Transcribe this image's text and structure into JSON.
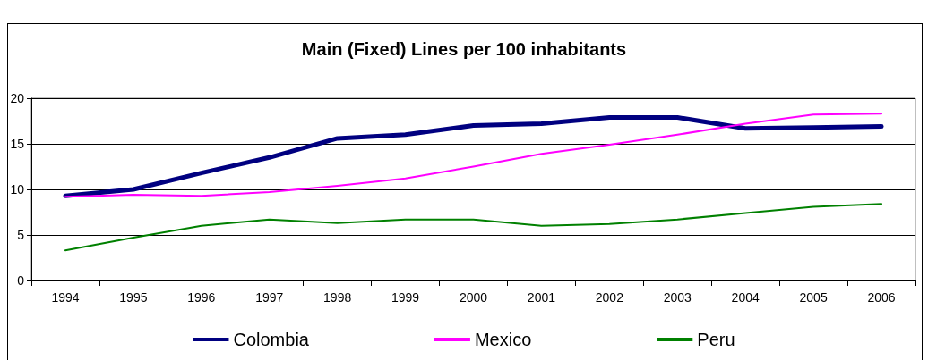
{
  "chart_data": {
    "type": "line",
    "title": "Main (Fixed) Lines per 100 inhabitants",
    "categories": [
      "1994",
      "1995",
      "1996",
      "1997",
      "1998",
      "1999",
      "2000",
      "2001",
      "2002",
      "2003",
      "2004",
      "2005",
      "2006"
    ],
    "series": [
      {
        "name": "Colombia",
        "color": "#000080",
        "values": [
          9.3,
          10.0,
          11.8,
          13.5,
          15.6,
          16.0,
          17.0,
          17.2,
          17.9,
          17.9,
          16.7,
          16.8,
          16.9
        ]
      },
      {
        "name": "Mexico",
        "color": "#ff00ff",
        "values": [
          9.2,
          9.4,
          9.3,
          9.7,
          10.4,
          11.2,
          12.5,
          13.9,
          14.9,
          16.0,
          17.2,
          18.2,
          18.3
        ]
      },
      {
        "name": "Peru",
        "color": "#008000",
        "values": [
          3.3,
          4.7,
          6.0,
          6.7,
          6.3,
          6.7,
          6.7,
          6.0,
          6.2,
          6.7,
          7.4,
          8.1,
          8.4
        ]
      }
    ],
    "ylim": [
      0,
      20
    ],
    "yticks": [
      0,
      5,
      10,
      15,
      20
    ],
    "grid": "y",
    "legend": "bottom",
    "marker": "none",
    "line_style": "solid"
  }
}
